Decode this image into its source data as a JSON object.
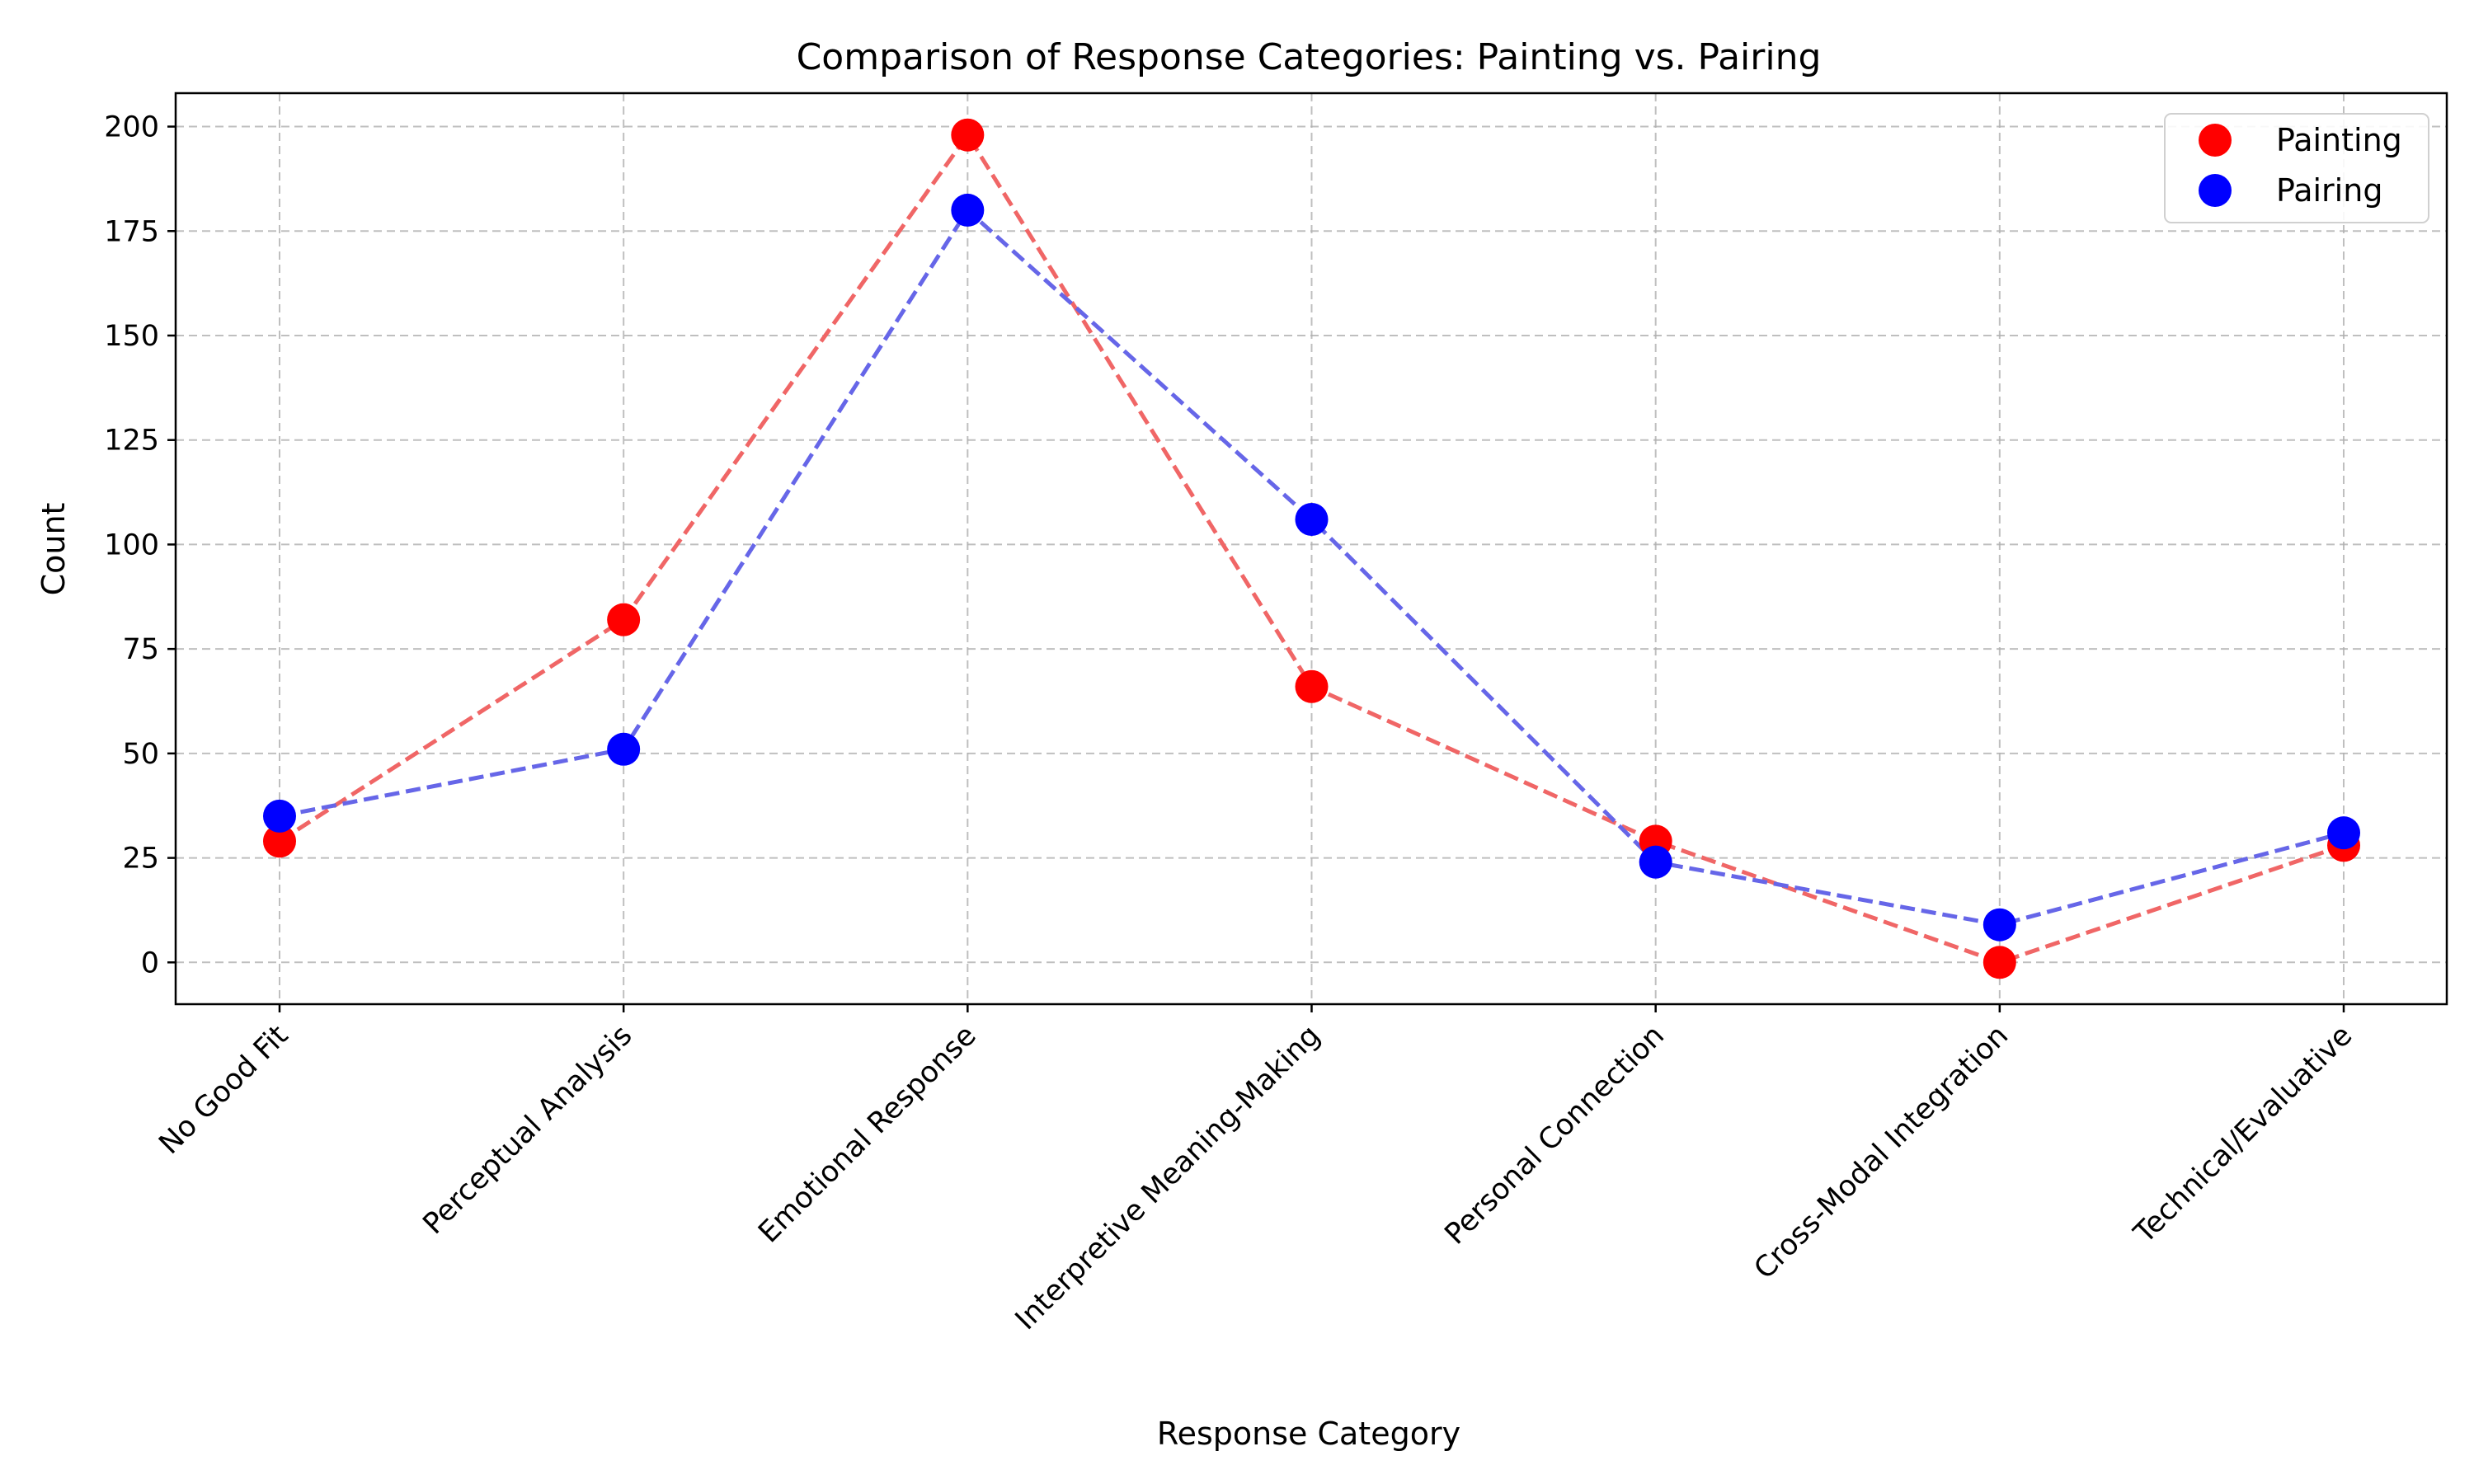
{
  "chart_data": {
    "type": "scatter",
    "title": "Comparison of Response Categories: Painting vs. Pairing",
    "xlabel": "Response Category",
    "ylabel": "Count",
    "categories": [
      "No Good Fit",
      "Perceptual Analysis",
      "Emotional Response",
      "Interpretive Meaning-Making",
      "Personal Connection",
      "Cross-Modal Integration",
      "Technical/Evaluative"
    ],
    "yticks": [
      0,
      25,
      50,
      75,
      100,
      125,
      150,
      175,
      200
    ],
    "ylim": [
      -10,
      208
    ],
    "grid": true,
    "legend_position": "top-right",
    "connecting_lines": "dashed",
    "series": [
      {
        "name": "Painting",
        "color": "#ff0000",
        "line_color": "#f06666",
        "values": [
          29,
          82,
          198,
          66,
          29,
          0,
          28
        ]
      },
      {
        "name": "Pairing",
        "color": "#0000ff",
        "line_color": "#6666e8",
        "values": [
          35,
          51,
          180,
          106,
          24,
          9,
          31
        ]
      }
    ]
  }
}
